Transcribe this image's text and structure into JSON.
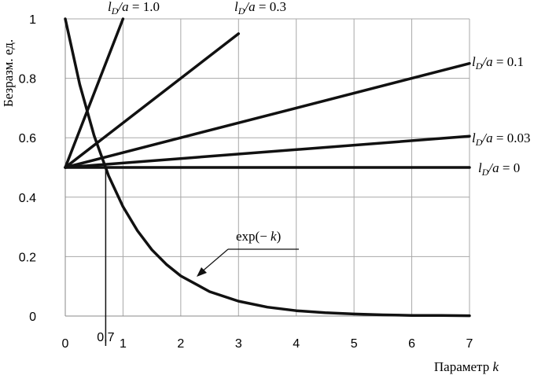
{
  "chart_data": {
    "type": "line",
    "title": "",
    "xlabel": "Параметр k",
    "ylabel": "Безразм. ед.",
    "xlim": [
      0,
      7
    ],
    "ylim": [
      0,
      1
    ],
    "xticks": [
      "0",
      "1",
      "2",
      "3",
      "4",
      "5",
      "6",
      "7"
    ],
    "yticks": [
      "0",
      "0.2",
      "0.4",
      "0.6",
      "0.8",
      "1"
    ],
    "grid": true,
    "series": [
      {
        "name": "l_D/a = 0",
        "label_value": "0",
        "x": [
          0,
          7
        ],
        "y": [
          0.5,
          0.5
        ]
      },
      {
        "name": "l_D/a = 0.03",
        "label_value": "0.03",
        "x": [
          0,
          7
        ],
        "y": [
          0.5,
          0.605
        ]
      },
      {
        "name": "l_D/a = 0.1",
        "label_value": "0.1",
        "x": [
          0,
          7
        ],
        "y": [
          0.5,
          0.85
        ]
      },
      {
        "name": "l_D/a = 0.3",
        "label_value": "0.3",
        "x": [
          0,
          3
        ],
        "y": [
          0.5,
          0.95
        ]
      },
      {
        "name": "l_D/a = 1.0",
        "label_value": "1.0",
        "x": [
          0,
          1
        ],
        "y": [
          0.5,
          1.0
        ]
      },
      {
        "name": "exp(− k)",
        "x": [
          0,
          0.25,
          0.5,
          0.75,
          1,
          1.25,
          1.5,
          1.75,
          2,
          2.5,
          3,
          3.5,
          4,
          4.5,
          5,
          5.5,
          6,
          6.5,
          7
        ],
        "y": [
          1,
          0.779,
          0.607,
          0.472,
          0.368,
          0.287,
          0.223,
          0.174,
          0.135,
          0.082,
          0.05,
          0.03,
          0.018,
          0.011,
          0.007,
          0.004,
          0.002,
          0.002,
          0.001
        ]
      }
    ],
    "annotations": {
      "marker_x": 0.7,
      "marker_label": "0,7",
      "exp_label_prefix": "exp(− ",
      "exp_label_var": "k",
      "exp_label_suffix": ")"
    }
  },
  "labels": {
    "ld_var_l": "l",
    "ld_var_sub": "D",
    "ld_var_a": "/a",
    "equals": " = ",
    "xlabel_text": "Параметр ",
    "xlabel_var": "k"
  }
}
